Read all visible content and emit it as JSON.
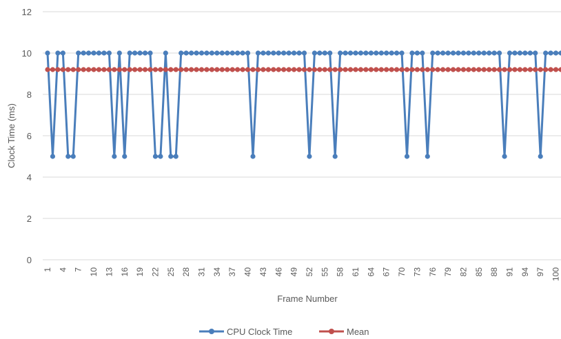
{
  "chart_data": {
    "type": "line",
    "xlabel": "Frame Number",
    "ylabel": "Clock Time (ms)",
    "ylim": [
      0,
      12
    ],
    "yticks": [
      0,
      2,
      4,
      6,
      8,
      10,
      12
    ],
    "xticks": [
      1,
      4,
      7,
      10,
      13,
      16,
      19,
      22,
      25,
      28,
      31,
      34,
      37,
      40,
      43,
      46,
      49,
      52,
      55,
      58,
      61,
      64,
      67,
      70,
      73,
      76,
      79,
      82,
      85,
      88,
      91,
      94,
      97,
      100
    ],
    "grid": true,
    "legend_position": "bottom",
    "series": [
      {
        "name": "CPU Clock Time",
        "color": "#4a7ebb",
        "values": [
          10,
          5,
          10,
          10,
          5,
          5,
          10,
          10,
          10,
          10,
          10,
          10,
          10,
          5,
          10,
          5,
          10,
          10,
          10,
          10,
          10,
          5,
          5,
          10,
          5,
          5,
          10,
          10,
          10,
          10,
          10,
          10,
          10,
          10,
          10,
          10,
          10,
          10,
          10,
          10,
          5,
          10,
          10,
          10,
          10,
          10,
          10,
          10,
          10,
          10,
          10,
          5,
          10,
          10,
          10,
          10,
          5,
          10,
          10,
          10,
          10,
          10,
          10,
          10,
          10,
          10,
          10,
          10,
          10,
          10,
          5,
          10,
          10,
          10,
          5,
          10,
          10,
          10,
          10,
          10,
          10,
          10,
          10,
          10,
          10,
          10,
          10,
          10,
          10,
          5,
          10,
          10,
          10,
          10,
          10,
          10,
          5,
          10,
          10,
          10,
          10
        ]
      },
      {
        "name": "Mean",
        "color": "#c0504d",
        "values": [
          9.2,
          9.2,
          9.2,
          9.2,
          9.2,
          9.2,
          9.2,
          9.2,
          9.2,
          9.2,
          9.2,
          9.2,
          9.2,
          9.2,
          9.2,
          9.2,
          9.2,
          9.2,
          9.2,
          9.2,
          9.2,
          9.2,
          9.2,
          9.2,
          9.2,
          9.2,
          9.2,
          9.2,
          9.2,
          9.2,
          9.2,
          9.2,
          9.2,
          9.2,
          9.2,
          9.2,
          9.2,
          9.2,
          9.2,
          9.2,
          9.2,
          9.2,
          9.2,
          9.2,
          9.2,
          9.2,
          9.2,
          9.2,
          9.2,
          9.2,
          9.2,
          9.2,
          9.2,
          9.2,
          9.2,
          9.2,
          9.2,
          9.2,
          9.2,
          9.2,
          9.2,
          9.2,
          9.2,
          9.2,
          9.2,
          9.2,
          9.2,
          9.2,
          9.2,
          9.2,
          9.2,
          9.2,
          9.2,
          9.2,
          9.2,
          9.2,
          9.2,
          9.2,
          9.2,
          9.2,
          9.2,
          9.2,
          9.2,
          9.2,
          9.2,
          9.2,
          9.2,
          9.2,
          9.2,
          9.2,
          9.2,
          9.2,
          9.2,
          9.2,
          9.2,
          9.2,
          9.2,
          9.2,
          9.2,
          9.2,
          9.2
        ]
      }
    ]
  }
}
